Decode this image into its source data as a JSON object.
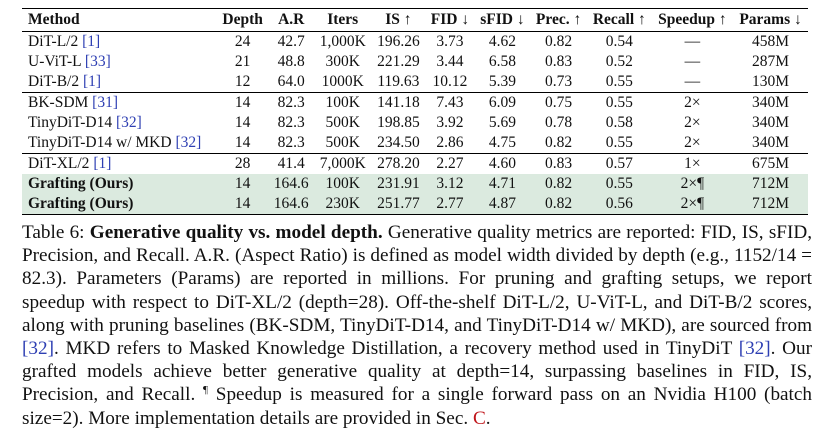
{
  "table": {
    "headers": [
      "Method",
      "Depth",
      "A.R",
      "Iters",
      "IS ↑",
      "FID ↓",
      "sFID ↓",
      "Prec. ↑",
      "Recall ↑",
      "Speedup ↑",
      "Params ↓"
    ],
    "rows": [
      {
        "method": "DiT-L/2",
        "cite": "[1]",
        "depth": "24",
        "ar": "42.7",
        "iters": "1,000K",
        "is": "196.26",
        "fid": "3.73",
        "sfid": "4.62",
        "prec": "0.82",
        "recall": "0.54",
        "speedup": "—",
        "params": "458M"
      },
      {
        "method": "U-ViT-L",
        "cite": "[33]",
        "depth": "21",
        "ar": "48.8",
        "iters": "300K",
        "is": "221.29",
        "fid": "3.44",
        "sfid": "6.58",
        "prec": "0.83",
        "recall": "0.52",
        "speedup": "—",
        "params": "287M"
      },
      {
        "method": "DiT-B/2",
        "cite": "[1]",
        "depth": "12",
        "ar": "64.0",
        "iters": "1000K",
        "is": "119.63",
        "fid": "10.12",
        "sfid": "5.39",
        "prec": "0.73",
        "recall": "0.55",
        "speedup": "—",
        "params": "130M"
      },
      {
        "method": "BK-SDM",
        "cite": "[31]",
        "depth": "14",
        "ar": "82.3",
        "iters": "100K",
        "is": "141.18",
        "fid": "7.43",
        "sfid": "6.09",
        "prec": "0.75",
        "recall": "0.55",
        "speedup": "2×",
        "params": "340M"
      },
      {
        "method": "TinyDiT-D14",
        "cite": "[32]",
        "depth": "14",
        "ar": "82.3",
        "iters": "500K",
        "is": "198.85",
        "fid": "3.92",
        "sfid": "5.69",
        "prec": "0.78",
        "recall": "0.58",
        "speedup": "2×",
        "params": "340M"
      },
      {
        "method": "TinyDiT-D14 w/ MKD",
        "cite": "[32]",
        "depth": "14",
        "ar": "82.3",
        "iters": "500K",
        "is": "234.50",
        "fid": "2.86",
        "sfid": "4.75",
        "prec": "0.82",
        "recall": "0.55",
        "speedup": "2×",
        "params": "340M"
      },
      {
        "method": "DiT-XL/2",
        "cite": "[1]",
        "depth": "28",
        "ar": "41.4",
        "iters": "7,000K",
        "is": "278.20",
        "fid": "2.27",
        "sfid": "4.60",
        "prec": "0.83",
        "recall": "0.57",
        "speedup": "1×",
        "params": "675M"
      },
      {
        "method": "Grafting (Ours)",
        "cite": "",
        "depth": "14",
        "ar": "164.6",
        "iters": "100K",
        "is": "231.91",
        "fid": "3.12",
        "sfid": "4.71",
        "prec": "0.82",
        "recall": "0.55",
        "speedup": "2×¶",
        "params": "712M"
      },
      {
        "method": "Grafting (Ours)",
        "cite": "",
        "depth": "14",
        "ar": "164.6",
        "iters": "230K",
        "is": "251.77",
        "fid": "2.77",
        "sfid": "4.87",
        "prec": "0.82",
        "recall": "0.56",
        "speedup": "2×¶",
        "params": "712M"
      }
    ]
  },
  "caption": {
    "prefix": "Table 6: ",
    "title": "Generative quality vs. model depth.",
    "t1": " Generative quality metrics are reported: FID, IS, sFID, Precision, and Recall. A.R. (Aspect Ratio) is defined as model width divided by depth (e.g., 1152/14 = 82.3). Parameters (Params) are reported in millions. For pruning and grafting setups, we report speedup with respect to DiT-XL/2 (depth=28). Off-the-shelf DiT-L/2, U-ViT-L, and DiT-B/2 scores, along with pruning baselines (BK-SDM, TinyDiT-D14, and TinyDiT-D14 w/ MKD), are sourced from ",
    "ref1": "[32]",
    "t2": ". MKD refers to Masked Knowledge Distillation, a recovery method used in TinyDiT ",
    "ref2": "[32]",
    "t3": ". Our grafted models achieve better generative quality at depth=14, surpassing baselines in FID, IS, Precision, and Recall. ",
    "mark": "¶",
    "t4": " Speedup is measured for a single forward pass on an Nvidia H100 (batch size=2). More implementation details are provided in Sec. ",
    "sec": "C",
    "t5": "."
  }
}
